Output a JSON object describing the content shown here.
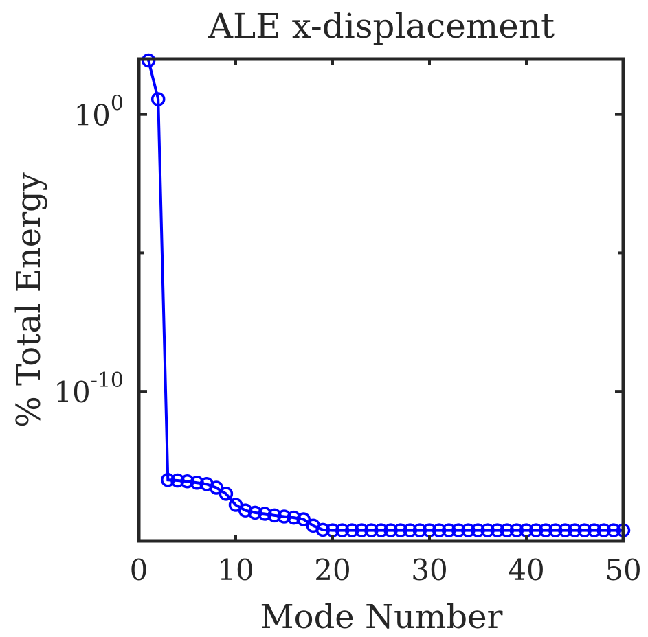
{
  "chart_data": {
    "type": "line",
    "title": "ALE x-displacement",
    "xlabel": "Mode Number",
    "ylabel": "% Total Energy",
    "xlim": [
      0,
      50
    ],
    "ylim_exponent": [
      -15.4,
      2
    ],
    "yscale": "log",
    "grid": false,
    "color": "#0000ff",
    "xticks": [
      {
        "value": 0,
        "label": "0"
      },
      {
        "value": 10,
        "label": "10"
      },
      {
        "value": 20,
        "label": "20"
      },
      {
        "value": 30,
        "label": "30"
      },
      {
        "value": 40,
        "label": "40"
      },
      {
        "value": 50,
        "label": "50"
      }
    ],
    "yticks": [
      {
        "exponent": 0,
        "base": "10",
        "exp_label": "0"
      },
      {
        "exponent": -10,
        "base": "10",
        "exp_label": "-10"
      }
    ],
    "series": [
      {
        "marker": "circle",
        "x": [
          1,
          2,
          3,
          4,
          5,
          6,
          7,
          8,
          9,
          10,
          11,
          12,
          13,
          14,
          15,
          16,
          17,
          18,
          19,
          20,
          21,
          22,
          23,
          24,
          25,
          26,
          27,
          28,
          29,
          30,
          31,
          32,
          33,
          34,
          35,
          36,
          37,
          38,
          39,
          40,
          41,
          42,
          43,
          44,
          45,
          46,
          47,
          48,
          49,
          50
        ],
        "log10_y": [
          1.95,
          0.55,
          -13.2,
          -13.22,
          -13.25,
          -13.3,
          -13.35,
          -13.48,
          -13.7,
          -14.1,
          -14.3,
          -14.38,
          -14.42,
          -14.48,
          -14.52,
          -14.56,
          -14.62,
          -14.85,
          -15.0,
          -15.02,
          -15.02,
          -15.02,
          -15.02,
          -15.02,
          -15.02,
          -15.02,
          -15.02,
          -15.02,
          -15.02,
          -15.02,
          -15.02,
          -15.02,
          -15.02,
          -15.02,
          -15.02,
          -15.02,
          -15.02,
          -15.02,
          -15.02,
          -15.02,
          -15.02,
          -15.02,
          -15.02,
          -15.02,
          -15.02,
          -15.02,
          -15.02,
          -15.02,
          -15.02,
          -15.02
        ]
      }
    ]
  }
}
